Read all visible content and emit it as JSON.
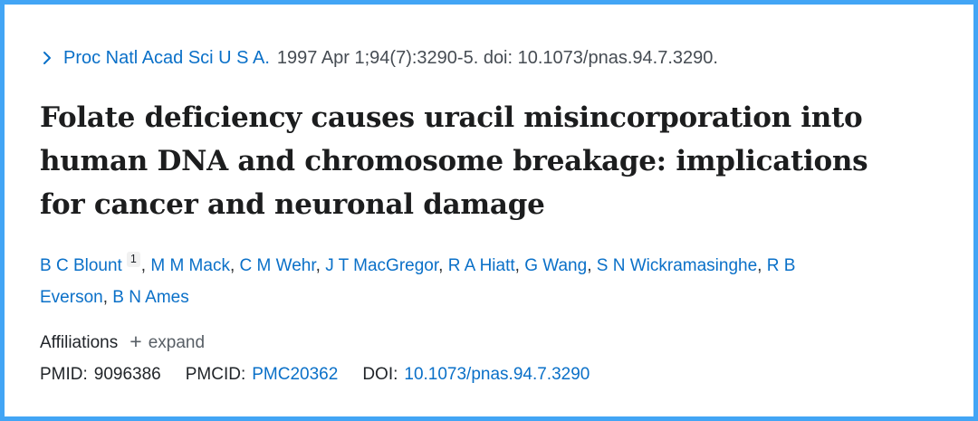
{
  "page": {
    "border_color": "#42a5f5",
    "background_color": "#ffffff"
  },
  "colors": {
    "link_blue": "#0a70c8",
    "citation_gray": "#464c53",
    "title_black": "#1c1d1e",
    "muted_slate": "#585f66"
  },
  "citation": {
    "chevron_icon": "chevron-right",
    "journal_link": "Proc Natl Acad Sci U S A.",
    "details": "1997 Apr 1;94(7):3290-5. doi: 10.1073/pnas.94.7.3290."
  },
  "article": {
    "title": "Folate deficiency causes uracil misincorporation into human DNA and chromosome breakage: implications for cancer and neuronal damage",
    "title_lines": [
      "Folate deficiency causes uracil misincorporation into",
      "human DNA and chromosome breakage: implications",
      "for cancer and neuronal damage"
    ]
  },
  "authors": {
    "separator": ", ",
    "list": [
      {
        "name": "B C Blount",
        "affiliation_sup": "1"
      },
      {
        "name": "M M Mack"
      },
      {
        "name": "C M Wehr"
      },
      {
        "name": "J T MacGregor"
      },
      {
        "name": "R A Hiatt"
      },
      {
        "name": "G Wang"
      },
      {
        "name": "S N Wickramasinghe"
      },
      {
        "name": "R B Everson"
      },
      {
        "name": "B N Ames"
      }
    ]
  },
  "affiliations": {
    "label": "Affiliations",
    "expand": {
      "plus_icon": "+",
      "label": "expand"
    }
  },
  "identifiers": {
    "pmid": {
      "label": "PMID:",
      "value": "9096386"
    },
    "pmcid": {
      "label": "PMCID:",
      "value": "PMC20362"
    },
    "doi": {
      "label": "DOI:",
      "value": "10.1073/pnas.94.7.3290"
    }
  }
}
